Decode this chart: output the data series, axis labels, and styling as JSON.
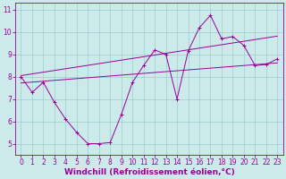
{
  "xlabel": "Windchill (Refroidissement éolien,°C)",
  "bg_color": "#cceaea",
  "line_color": "#990099",
  "grid_color": "#99cccc",
  "x_data": [
    0,
    1,
    2,
    3,
    4,
    5,
    6,
    7,
    8,
    9,
    10,
    11,
    12,
    13,
    14,
    15,
    16,
    17,
    18,
    19,
    20,
    21,
    22,
    23
  ],
  "y_jagged": [
    8.0,
    7.3,
    7.75,
    6.85,
    6.1,
    5.5,
    5.0,
    5.0,
    5.05,
    6.3,
    7.75,
    8.5,
    9.2,
    9.0,
    7.0,
    9.15,
    10.2,
    10.75,
    9.7,
    9.8,
    9.4,
    8.5,
    8.55,
    8.8
  ],
  "xlim": [
    -0.5,
    23.5
  ],
  "ylim": [
    4.5,
    11.3
  ],
  "yticks": [
    5,
    6,
    7,
    8,
    9,
    10,
    11
  ],
  "xticks": [
    0,
    1,
    2,
    3,
    4,
    5,
    6,
    7,
    8,
    9,
    10,
    11,
    12,
    13,
    14,
    15,
    16,
    17,
    18,
    19,
    20,
    21,
    22,
    23
  ],
  "upper_start": 8.05,
  "upper_end": 9.82,
  "lower_start": 7.72,
  "lower_end": 8.62,
  "fontsize_label": 6.5,
  "fontsize_tick": 5.5
}
